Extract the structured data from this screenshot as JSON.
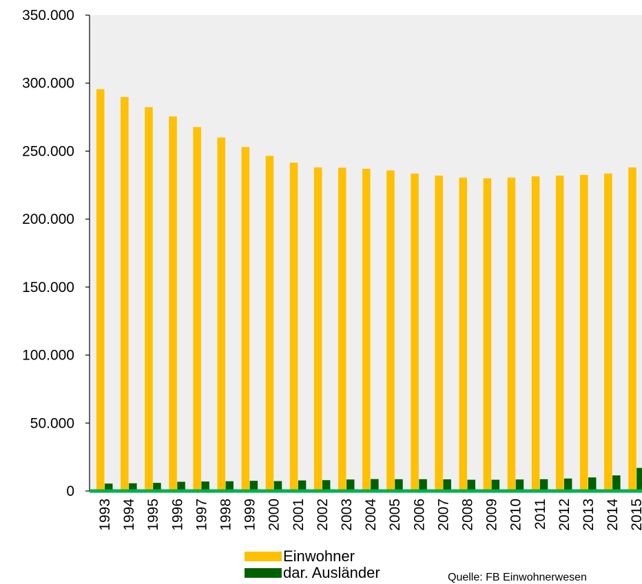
{
  "chart_data": {
    "type": "bar",
    "categories": [
      "1993",
      "1994",
      "1995",
      "1996",
      "1997",
      "1998",
      "1999",
      "2000",
      "2001",
      "2002",
      "2003",
      "2004",
      "2005",
      "2006",
      "2007",
      "2008",
      "2009",
      "2010",
      "2011",
      "2012",
      "2013",
      "2014",
      "2015"
    ],
    "series": [
      {
        "name": "Einwohner",
        "color": "#FFC000",
        "values": [
          295500,
          289800,
          282300,
          275500,
          267700,
          260000,
          253000,
          246500,
          241500,
          238000,
          237800,
          237000,
          235800,
          233500,
          232000,
          230500,
          230000,
          230500,
          231500,
          232000,
          232500,
          233500,
          238000
        ]
      },
      {
        "name": "dar. Ausländer",
        "color": "#006100",
        "values": [
          5500,
          5700,
          6000,
          6800,
          7000,
          7200,
          7500,
          7300,
          7800,
          8000,
          8500,
          8800,
          8700,
          8700,
          8600,
          8300,
          8300,
          8500,
          8700,
          9200,
          10000,
          11500,
          17000
        ]
      }
    ],
    "y_ticks": [
      "0",
      "50.000",
      "100.000",
      "150.000",
      "200.000",
      "250.000",
      "300.000",
      "350.000"
    ],
    "ylim": [
      0,
      350000
    ],
    "grid": false,
    "background": "#EFEFEF",
    "baseline_color": "#00B050",
    "legend_position": "bottom-center",
    "source": "Quelle: FB Einwohnerwesen"
  }
}
